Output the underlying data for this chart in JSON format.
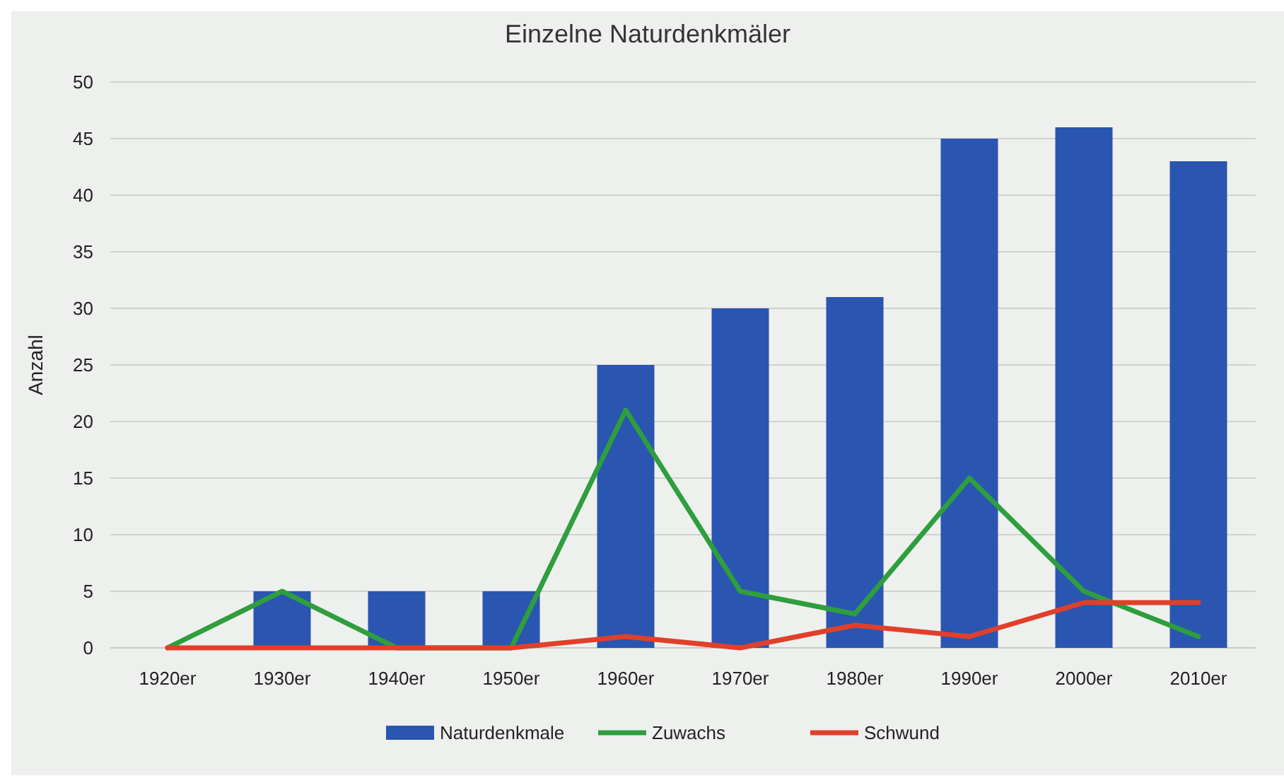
{
  "chart_data": {
    "type": "bar",
    "title": "Einzelne Naturdenkmäler",
    "ylabel": "Anzahl",
    "categories": [
      "1920er",
      "1930er",
      "1940er",
      "1950er",
      "1960er",
      "1970er",
      "1980er",
      "1990er",
      "2000er",
      "2010er"
    ],
    "series": [
      {
        "name": "Naturdenkmale",
        "color": "#2a55b0",
        "values": [
          0,
          5,
          5,
          5,
          25,
          30,
          31,
          45,
          46,
          43
        ]
      },
      {
        "name": "Zuwachs",
        "type": "line",
        "color": "#2e9e3e",
        "values": [
          0,
          5,
          0,
          0,
          21,
          5,
          3,
          15,
          5,
          1
        ]
      },
      {
        "name": "Schwund",
        "type": "line",
        "color": "#e0402a",
        "values": [
          0,
          0,
          0,
          0,
          1,
          0,
          2,
          1,
          4,
          4
        ]
      }
    ],
    "ylim": [
      0,
      50
    ],
    "yticks": [
      0,
      5,
      10,
      15,
      20,
      25,
      30,
      35,
      40,
      45,
      50
    ],
    "grid": "y",
    "legend": "bottom",
    "marker": "none",
    "line_style": "solid"
  }
}
